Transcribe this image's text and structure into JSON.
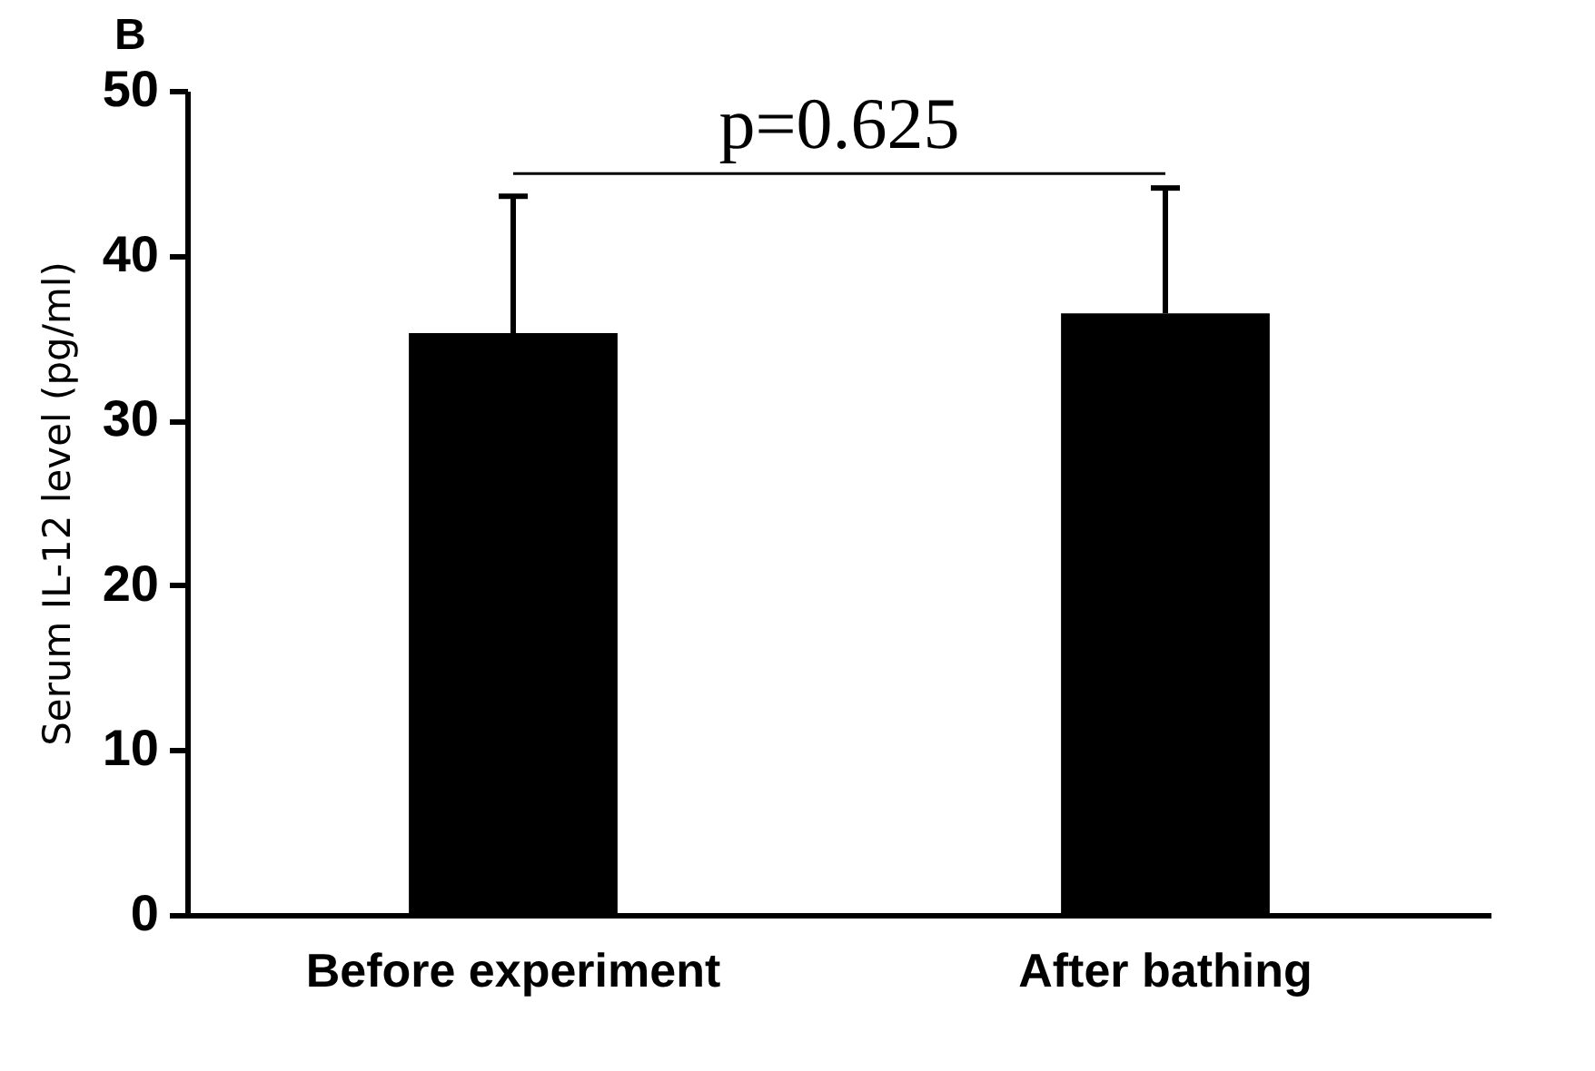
{
  "chart_data": {
    "type": "bar",
    "title": "B",
    "ylabel": "Serum IL-12 level (pg/ml)",
    "categories": [
      "Before experiment",
      "After bathing"
    ],
    "values": [
      35.3,
      36.5
    ],
    "color": "#000000",
    "errors": [
      [
        35.3,
        43.6
      ],
      [
        36.5,
        44.1
      ]
    ],
    "ylim": [
      0,
      50
    ],
    "yticks": [
      0,
      10,
      20,
      30,
      40,
      50
    ],
    "annotations": [
      "p=0.625"
    ]
  }
}
